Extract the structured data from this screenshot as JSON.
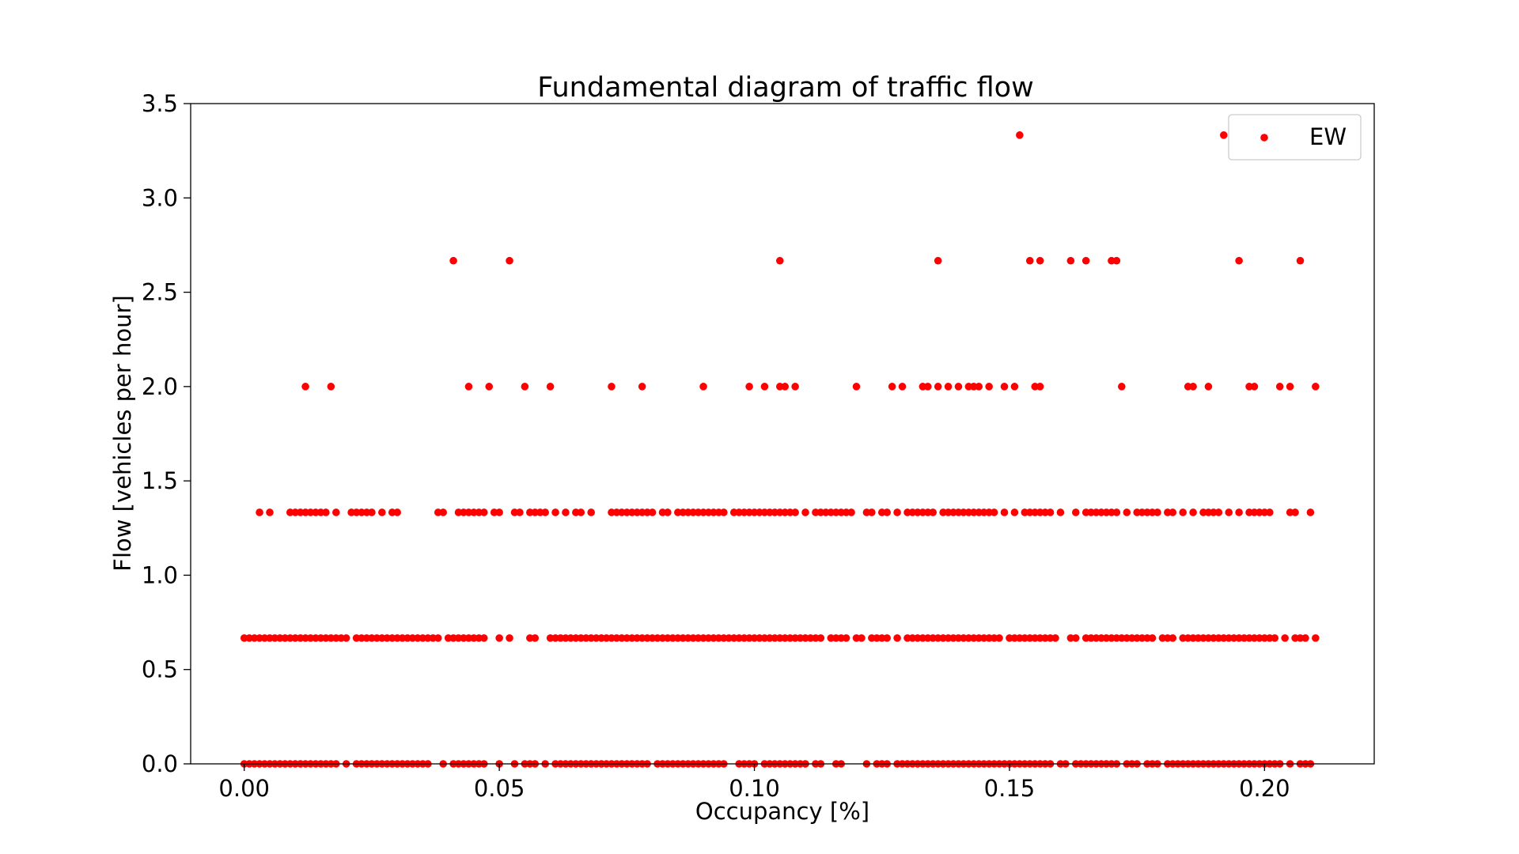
{
  "chart_data": {
    "type": "scatter",
    "title": "Fundamental diagram of traffic flow",
    "xlabel": "Occupancy [%]",
    "ylabel": "Flow [vehicles per hour]",
    "xlim": [
      -0.0105,
      0.2215
    ],
    "ylim": [
      0,
      3.5
    ],
    "xticks": [
      0.0,
      0.05,
      0.1,
      0.15,
      0.2
    ],
    "xtick_labels": [
      "0.00",
      "0.05",
      "0.10",
      "0.15",
      "0.20"
    ],
    "yticks": [
      0.0,
      0.5,
      1.0,
      1.5,
      2.0,
      2.5,
      3.0,
      3.5
    ],
    "ytick_labels": [
      "0.0",
      "0.5",
      "1.0",
      "1.5",
      "2.0",
      "2.5",
      "3.0",
      "3.5"
    ],
    "grid": false,
    "legend_position": "top-right",
    "marker_color": "#ff0000",
    "series": [
      {
        "name": "EW",
        "color": "#ff0000",
        "levels": [
          {
            "y": 3.333,
            "x": [
              0.152,
              0.192
            ]
          },
          {
            "y": 2.667,
            "x": [
              0.041,
              0.052,
              0.105,
              0.136,
              0.154,
              0.156,
              0.162,
              0.165,
              0.17,
              0.171,
              0.195,
              0.207
            ]
          },
          {
            "y": 2.0,
            "x": [
              0.012,
              0.017,
              0.044,
              0.048,
              0.055,
              0.06,
              0.072,
              0.078,
              0.09,
              0.099,
              0.102,
              0.105,
              0.106,
              0.108,
              0.12,
              0.127,
              0.129,
              0.133,
              0.134,
              0.136,
              0.138,
              0.14,
              0.142,
              0.143,
              0.144,
              0.146,
              0.149,
              0.151,
              0.155,
              0.156,
              0.172,
              0.185,
              0.186,
              0.189,
              0.197,
              0.198,
              0.203,
              0.205,
              0.21
            ]
          },
          {
            "y": 1.333,
            "x": [
              0.003,
              0.005,
              0.009,
              0.01,
              0.011,
              0.012,
              0.013,
              0.014,
              0.015,
              0.016,
              0.018,
              0.021,
              0.022,
              0.023,
              0.024,
              0.025,
              0.027,
              0.029,
              0.03,
              0.038,
              0.039,
              0.042,
              0.043,
              0.044,
              0.045,
              0.046,
              0.047,
              0.049,
              0.05,
              0.053,
              0.054,
              0.056,
              0.057,
              0.058,
              0.059,
              0.061,
              0.063,
              0.065,
              0.066,
              0.068,
              0.072,
              0.073,
              0.074,
              0.075,
              0.076,
              0.077,
              0.078,
              0.079,
              0.08,
              0.082,
              0.083,
              0.085,
              0.086,
              0.087,
              0.088,
              0.089,
              0.09,
              0.091,
              0.092,
              0.093,
              0.094,
              0.096,
              0.097,
              0.098,
              0.099,
              0.1,
              0.101,
              0.102,
              0.103,
              0.104,
              0.105,
              0.106,
              0.107,
              0.108,
              0.11,
              0.112,
              0.113,
              0.114,
              0.115,
              0.116,
              0.117,
              0.118,
              0.119,
              0.122,
              0.123,
              0.125,
              0.126,
              0.128,
              0.13,
              0.131,
              0.132,
              0.133,
              0.134,
              0.135,
              0.137,
              0.138,
              0.139,
              0.14,
              0.141,
              0.142,
              0.143,
              0.144,
              0.145,
              0.146,
              0.147,
              0.149,
              0.151,
              0.153,
              0.154,
              0.155,
              0.156,
              0.157,
              0.158,
              0.16,
              0.163,
              0.165,
              0.166,
              0.167,
              0.168,
              0.169,
              0.17,
              0.171,
              0.173,
              0.175,
              0.176,
              0.177,
              0.178,
              0.179,
              0.181,
              0.182,
              0.184,
              0.186,
              0.188,
              0.189,
              0.19,
              0.191,
              0.193,
              0.195,
              0.197,
              0.198,
              0.199,
              0.2,
              0.201,
              0.205,
              0.206,
              0.209
            ]
          },
          {
            "y": 0.667,
            "x": [
              0.0,
              0.001,
              0.002,
              0.003,
              0.004,
              0.005,
              0.006,
              0.007,
              0.008,
              0.009,
              0.01,
              0.011,
              0.012,
              0.013,
              0.014,
              0.015,
              0.016,
              0.017,
              0.018,
              0.019,
              0.02,
              0.022,
              0.023,
              0.024,
              0.025,
              0.026,
              0.027,
              0.028,
              0.029,
              0.03,
              0.031,
              0.032,
              0.033,
              0.034,
              0.035,
              0.036,
              0.037,
              0.038,
              0.04,
              0.041,
              0.042,
              0.043,
              0.044,
              0.045,
              0.046,
              0.047,
              0.05,
              0.052,
              0.056,
              0.057,
              0.06,
              0.061,
              0.062,
              0.063,
              0.064,
              0.065,
              0.066,
              0.067,
              0.068,
              0.069,
              0.07,
              0.071,
              0.072,
              0.073,
              0.074,
              0.075,
              0.076,
              0.077,
              0.078,
              0.079,
              0.08,
              0.081,
              0.082,
              0.083,
              0.084,
              0.085,
              0.086,
              0.087,
              0.088,
              0.089,
              0.09,
              0.091,
              0.092,
              0.093,
              0.094,
              0.095,
              0.096,
              0.097,
              0.098,
              0.099,
              0.1,
              0.101,
              0.102,
              0.103,
              0.104,
              0.105,
              0.106,
              0.107,
              0.108,
              0.109,
              0.11,
              0.111,
              0.112,
              0.113,
              0.115,
              0.116,
              0.117,
              0.118,
              0.12,
              0.121,
              0.123,
              0.124,
              0.125,
              0.126,
              0.128,
              0.13,
              0.131,
              0.132,
              0.133,
              0.134,
              0.135,
              0.136,
              0.137,
              0.138,
              0.139,
              0.14,
              0.141,
              0.142,
              0.143,
              0.144,
              0.145,
              0.146,
              0.147,
              0.148,
              0.15,
              0.151,
              0.152,
              0.153,
              0.154,
              0.155,
              0.156,
              0.157,
              0.158,
              0.159,
              0.162,
              0.163,
              0.165,
              0.166,
              0.167,
              0.168,
              0.169,
              0.17,
              0.171,
              0.172,
              0.173,
              0.174,
              0.175,
              0.176,
              0.177,
              0.178,
              0.18,
              0.181,
              0.182,
              0.184,
              0.185,
              0.186,
              0.187,
              0.188,
              0.189,
              0.19,
              0.191,
              0.192,
              0.193,
              0.194,
              0.195,
              0.196,
              0.197,
              0.198,
              0.199,
              0.2,
              0.201,
              0.202,
              0.204,
              0.206,
              0.207,
              0.208,
              0.21
            ]
          },
          {
            "y": 0.0,
            "x": [
              0.0,
              0.001,
              0.002,
              0.003,
              0.004,
              0.005,
              0.006,
              0.007,
              0.008,
              0.009,
              0.01,
              0.011,
              0.012,
              0.013,
              0.014,
              0.015,
              0.016,
              0.017,
              0.018,
              0.02,
              0.022,
              0.023,
              0.024,
              0.025,
              0.026,
              0.027,
              0.028,
              0.029,
              0.03,
              0.031,
              0.032,
              0.033,
              0.034,
              0.035,
              0.036,
              0.039,
              0.041,
              0.042,
              0.043,
              0.044,
              0.045,
              0.046,
              0.047,
              0.05,
              0.053,
              0.055,
              0.056,
              0.057,
              0.059,
              0.061,
              0.062,
              0.063,
              0.064,
              0.065,
              0.066,
              0.067,
              0.068,
              0.069,
              0.07,
              0.071,
              0.072,
              0.073,
              0.074,
              0.075,
              0.076,
              0.077,
              0.078,
              0.079,
              0.081,
              0.082,
              0.083,
              0.084,
              0.085,
              0.086,
              0.087,
              0.088,
              0.089,
              0.09,
              0.091,
              0.092,
              0.093,
              0.094,
              0.097,
              0.098,
              0.099,
              0.1,
              0.102,
              0.103,
              0.104,
              0.105,
              0.106,
              0.107,
              0.108,
              0.109,
              0.11,
              0.112,
              0.113,
              0.116,
              0.117,
              0.122,
              0.124,
              0.125,
              0.126,
              0.128,
              0.129,
              0.13,
              0.131,
              0.132,
              0.133,
              0.134,
              0.135,
              0.136,
              0.137,
              0.138,
              0.139,
              0.14,
              0.141,
              0.142,
              0.143,
              0.144,
              0.145,
              0.146,
              0.147,
              0.148,
              0.149,
              0.15,
              0.151,
              0.152,
              0.153,
              0.154,
              0.155,
              0.156,
              0.157,
              0.158,
              0.16,
              0.161,
              0.163,
              0.164,
              0.165,
              0.166,
              0.167,
              0.168,
              0.169,
              0.17,
              0.171,
              0.173,
              0.174,
              0.175,
              0.177,
              0.178,
              0.179,
              0.181,
              0.182,
              0.183,
              0.184,
              0.185,
              0.186,
              0.187,
              0.188,
              0.189,
              0.19,
              0.191,
              0.192,
              0.193,
              0.194,
              0.195,
              0.196,
              0.197,
              0.198,
              0.199,
              0.2,
              0.201,
              0.202,
              0.203,
              0.205,
              0.207,
              0.208,
              0.209
            ]
          }
        ]
      }
    ]
  }
}
